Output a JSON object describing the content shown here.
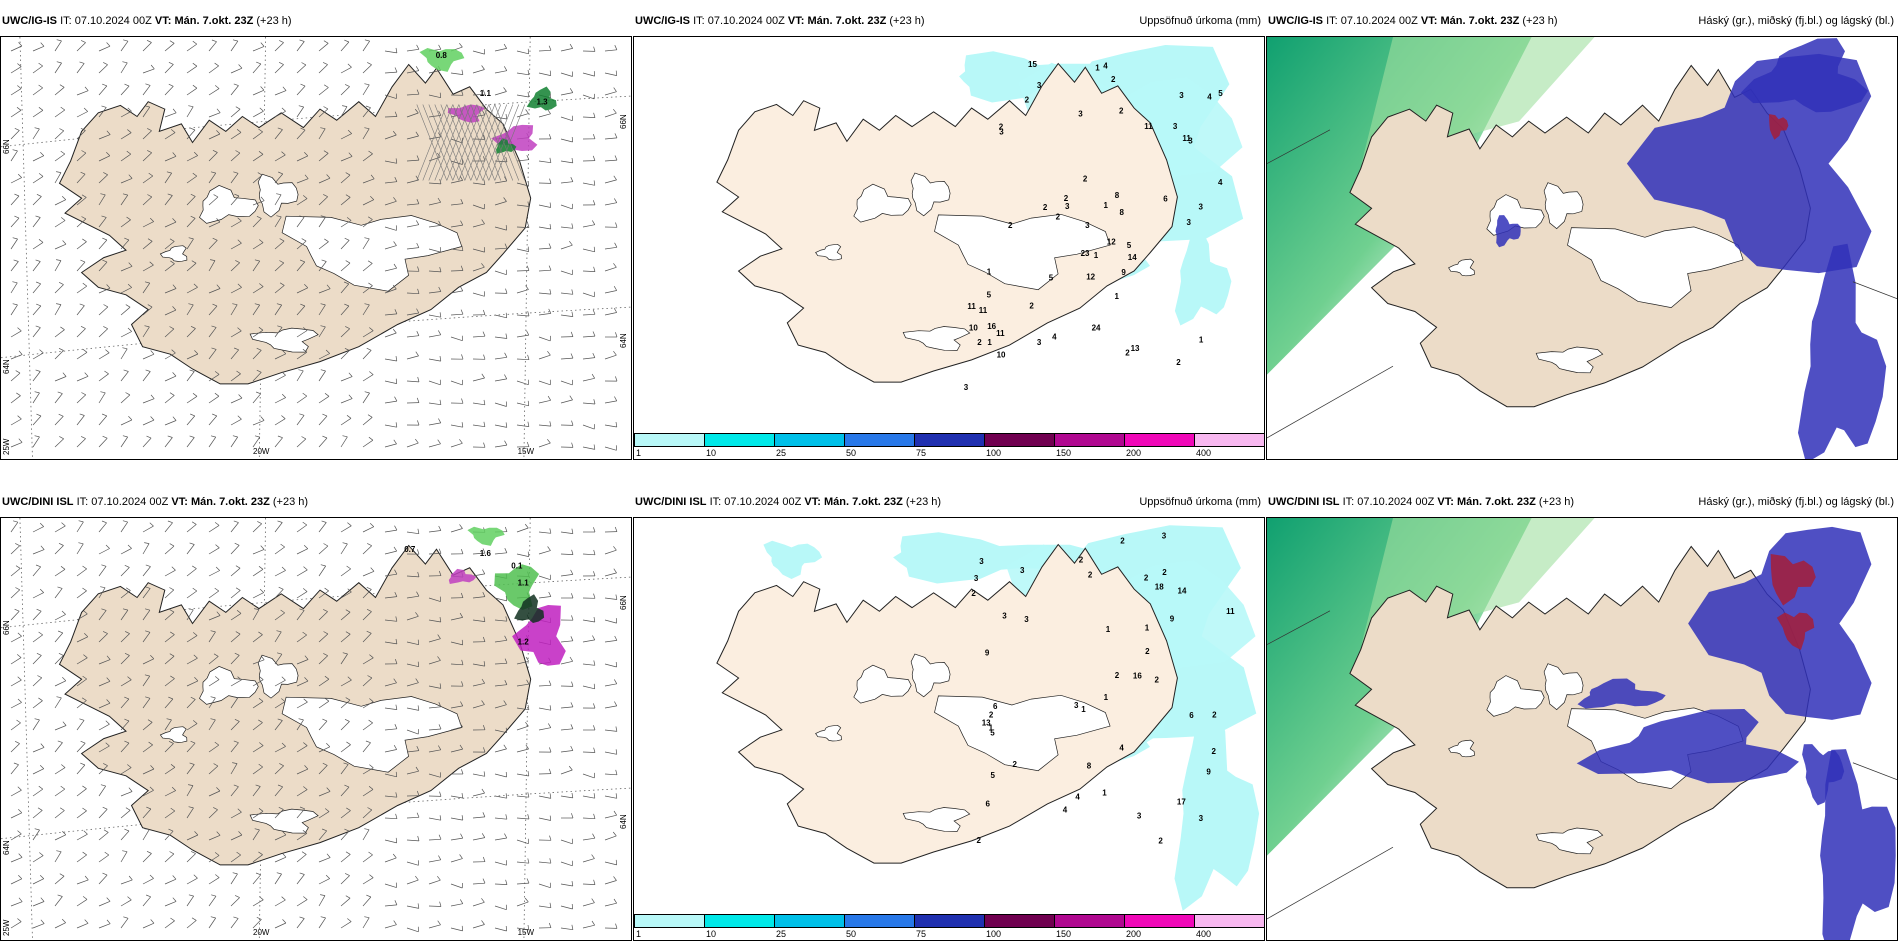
{
  "rows": [
    {
      "model": "UWC/IG-IS",
      "it_label": "IT:",
      "it_value": "07.10.2024 00Z",
      "vt_label": "VT:",
      "vt_value": "Mán. 7.okt. 23Z",
      "lead": "(+23 h)",
      "wind_labels": [
        "0.8",
        "1.1",
        "1.3"
      ],
      "precip_numbers": [
        "2",
        "3",
        "3",
        "2",
        "5",
        "3",
        "8",
        "3",
        "5",
        "4",
        "3",
        "3",
        "2",
        "5",
        "4",
        "2",
        "10",
        "11",
        "4",
        "2",
        "1",
        "2",
        "6",
        "2",
        "23",
        "1",
        "2",
        "2",
        "2",
        "3",
        "12",
        "12",
        "24",
        "15",
        "1",
        "2",
        "1",
        "3",
        "3",
        "14",
        "16",
        "3",
        "4",
        "2",
        "3",
        "3",
        "8",
        "10",
        "5",
        "13",
        "2",
        "9",
        "11",
        "11",
        "11",
        "11",
        "1",
        "1",
        "1"
      ]
    },
    {
      "model": "UWC/DINI ISL",
      "it_label": "IT:",
      "it_value": "07.10.2024 00Z",
      "vt_label": "VT:",
      "vt_value": "Mán. 7.okt. 23Z",
      "lead": "(+23 h)",
      "wind_labels": [
        "0.7",
        "1.6",
        "0.1",
        "1.1",
        "1.2"
      ],
      "precip_numbers": [
        "3",
        "3",
        "1",
        "2",
        "1",
        "2",
        "2",
        "4",
        "6",
        "2",
        "5",
        "5",
        "4",
        "3",
        "6",
        "2",
        "1",
        "1",
        "1",
        "3",
        "2",
        "9",
        "8",
        "3",
        "3",
        "4",
        "18",
        "17",
        "2",
        "2",
        "3",
        "14",
        "16",
        "2",
        "2",
        "9",
        "11",
        "3",
        "6",
        "3",
        "13",
        "9",
        "2",
        "2",
        "2",
        "1",
        "2",
        "2"
      ]
    }
  ],
  "precip_title": "Uppsöfnuð úrkoma (mm)",
  "cloud_title": "Háský (gr.), miðský (fj.bl.) og lágský (bl.)",
  "colorbar": {
    "labels": [
      "1",
      "10",
      "25",
      "50",
      "75",
      "100",
      "150",
      "200",
      "400"
    ],
    "colors": [
      "#b8f8f8",
      "#00e8e8",
      "#00c0e8",
      "#2878e8",
      "#2030b0",
      "#700050",
      "#b00890",
      "#f008b8",
      "#f8b8f0"
    ]
  },
  "graticule": {
    "lat_labels": [
      "66N",
      "64N"
    ],
    "lon_labels": [
      "20W",
      "15W"
    ],
    "left_bottom": "25W"
  },
  "colors": {
    "land": "#ecdcc8",
    "land_pale": "#fbeee0",
    "coast": "#222222",
    "precip_light": "#b8f8f8",
    "cloud_high": "#20a070",
    "cloud_mid": "#3030b8",
    "cloud_low": "#a02040"
  }
}
